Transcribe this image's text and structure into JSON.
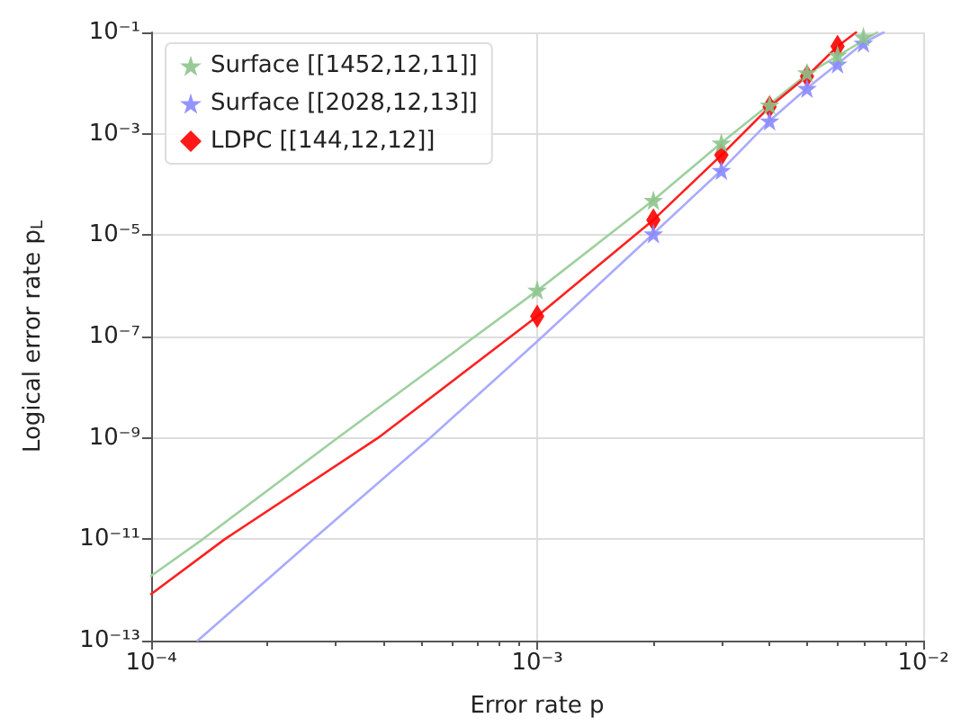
{
  "chart_data": {
    "type": "scatter",
    "xlabel": "Error rate p",
    "ylabel": "Logical error rate p$_{L}$",
    "log": "xy",
    "grid": true,
    "legend": "top left",
    "xlim": [
      0.0001,
      0.01
    ],
    "ylim": [
      1e-13,
      0.1
    ],
    "xticks": [
      {
        "value": 0.0001,
        "label": "10⁻⁴"
      },
      {
        "value": 0.001,
        "label": "10⁻³"
      },
      {
        "value": 0.01,
        "label": "10⁻²"
      }
    ],
    "yticks": [
      {
        "value": 1e-13,
        "label": "10⁻¹³"
      },
      {
        "value": 1e-11,
        "label": "10⁻¹¹"
      },
      {
        "value": 1e-09,
        "label": "10⁻⁹"
      },
      {
        "value": 1e-07,
        "label": "10⁻⁷"
      },
      {
        "value": 1e-05,
        "label": "10⁻⁵"
      },
      {
        "value": 0.001,
        "label": "10⁻³"
      },
      {
        "value": 0.1,
        "label": "10⁻¹"
      }
    ],
    "series": [
      {
        "type": "line",
        "color": "#9fd09f",
        "marker": "none",
        "x": [
          0.0001,
          0.000136,
          0.000304,
          0.001,
          0.002,
          0.003,
          0.005,
          0.0076
        ],
        "values": [
          1.9e-12,
          1e-11,
          1e-09,
          8e-07,
          4.9e-05,
          0.00066,
          0.015,
          0.1
        ]
      },
      {
        "type": "line",
        "color": "#aaaaff",
        "marker": "none",
        "x": [
          0.000132,
          0.000263,
          0.000528,
          0.001,
          0.002,
          0.003,
          0.004,
          0.005,
          0.006,
          0.007,
          0.0079
        ],
        "values": [
          1e-13,
          1e-11,
          1e-09,
          8e-08,
          1.07e-05,
          0.00019,
          0.0018,
          0.0079,
          0.024,
          0.062,
          0.1
        ]
      },
      {
        "type": "line",
        "color": "#ff2020",
        "marker": "none",
        "x": [
          0.0001,
          0.000155,
          0.000387,
          0.001,
          0.002,
          0.003,
          0.004,
          0.005,
          0.006,
          0.0067
        ],
        "values": [
          8.3e-13,
          1e-11,
          1e-09,
          2.5e-07,
          2e-05,
          0.00038,
          0.0034,
          0.0137,
          0.053,
          0.1
        ]
      },
      {
        "name": "Surface [[1452,12,11]]",
        "type": "scatter",
        "marker": "star",
        "color": "#8cc48c",
        "x": [
          0.001,
          0.002,
          0.003,
          0.004,
          0.005,
          0.006,
          0.007
        ],
        "values": [
          8.3e-07,
          4.9e-05,
          0.00066,
          0.0037,
          0.016,
          0.036,
          0.082
        ]
      },
      {
        "name": "Surface [[2028,12,13]]",
        "type": "scatter",
        "marker": "star",
        "color": "#8888ff",
        "x": [
          0.002,
          0.003,
          0.004,
          0.005,
          0.006,
          0.007
        ],
        "values": [
          1.07e-05,
          0.00019,
          0.0018,
          0.0079,
          0.024,
          0.062
        ]
      },
      {
        "name": "LDPC [[144,12,12]]",
        "type": "scatter",
        "marker": "diamond",
        "color": "#ff0000",
        "x": [
          0.001,
          0.002,
          0.003,
          0.004,
          0.005,
          0.006
        ],
        "values": [
          2.5e-07,
          2e-05,
          0.00038,
          0.0034,
          0.0137,
          0.053
        ]
      }
    ]
  }
}
